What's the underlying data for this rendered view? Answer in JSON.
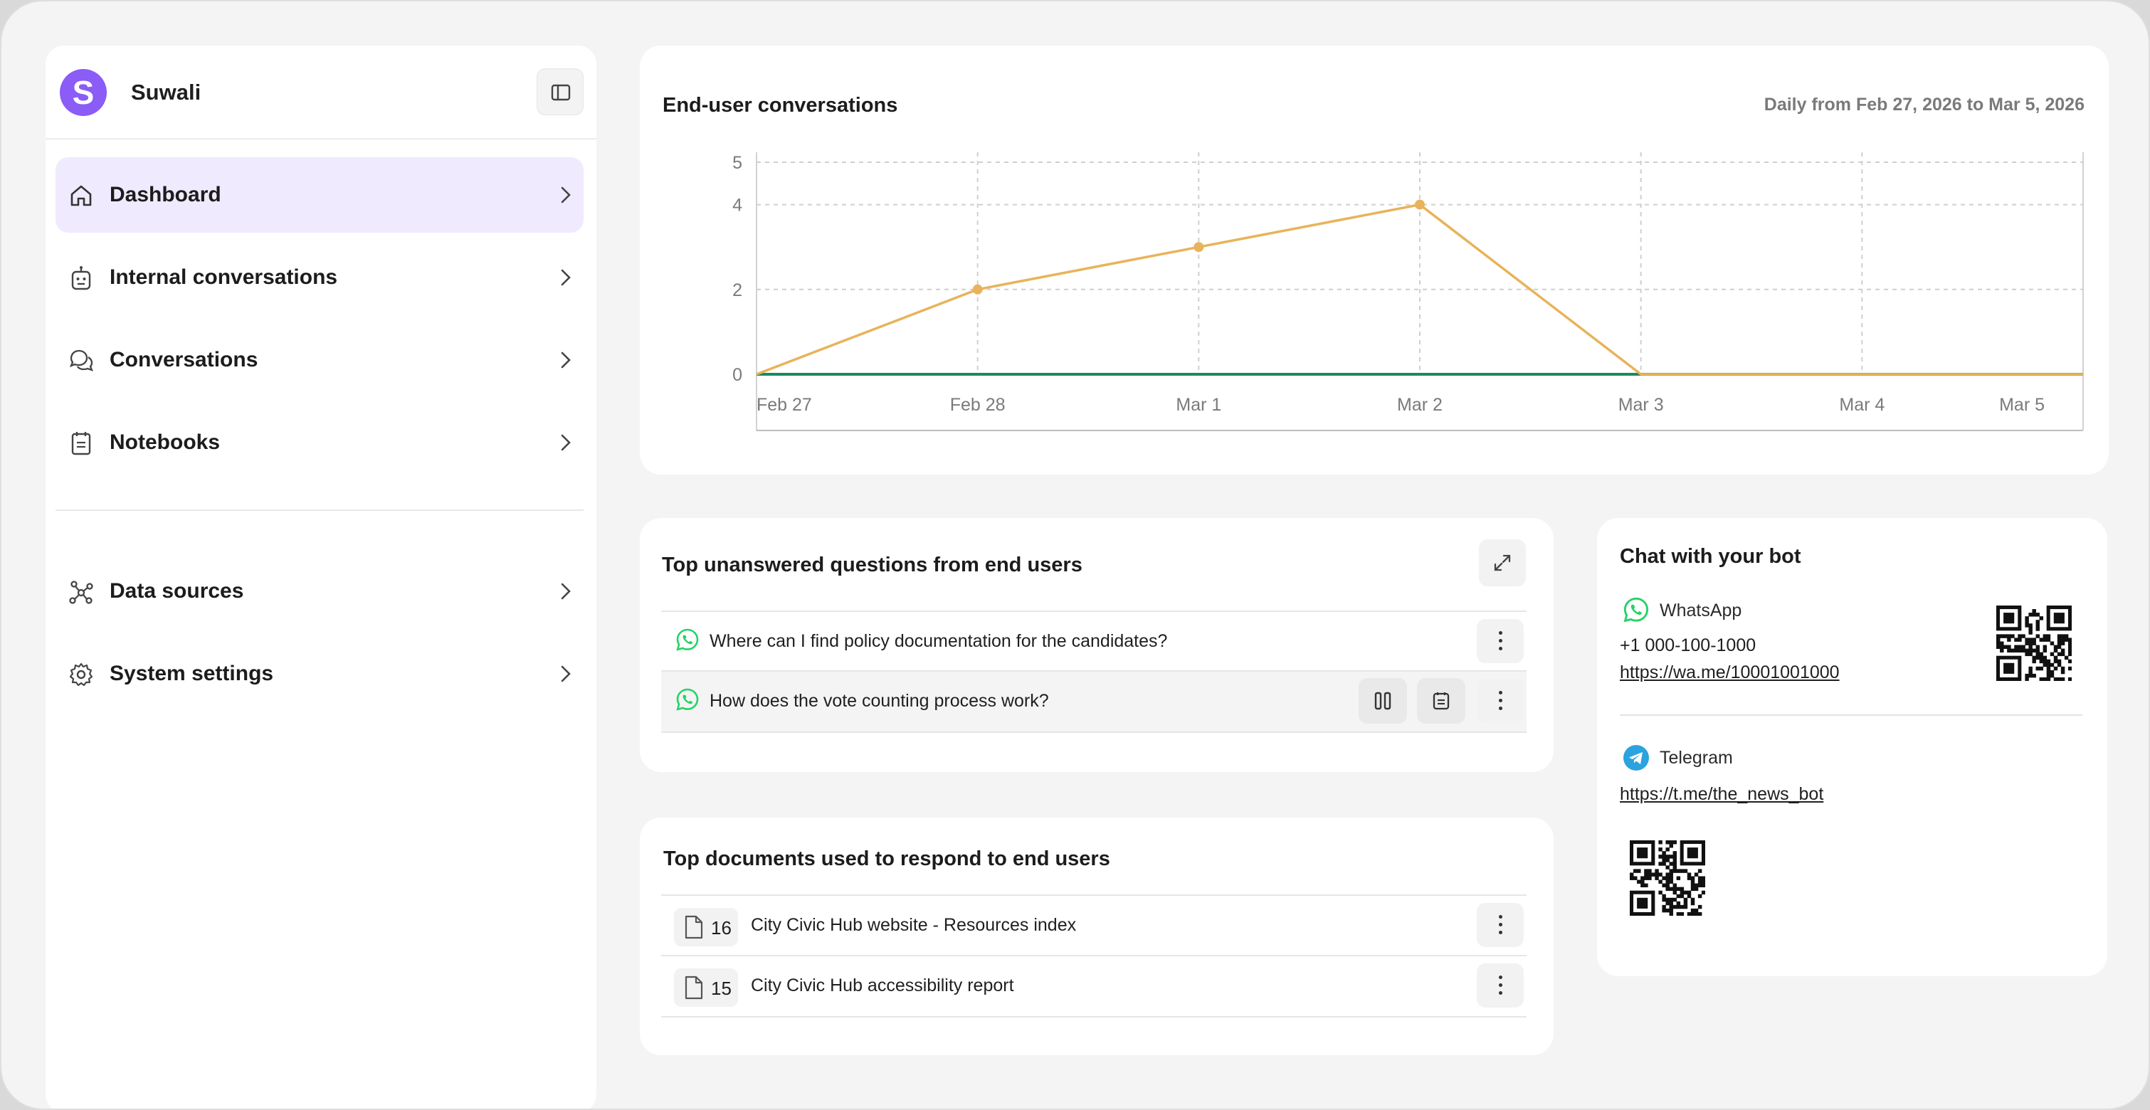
{
  "sidebar": {
    "brand": {
      "initial": "S",
      "name": "Suwali",
      "avatar_color": "#8b5cf6"
    },
    "items": [
      {
        "label": "Dashboard",
        "icon": "home-icon",
        "active": true
      },
      {
        "label": "Internal conversations",
        "icon": "robot-icon"
      },
      {
        "label": "Conversations",
        "icon": "chat-bubbles-icon"
      },
      {
        "label": "Notebooks",
        "icon": "notebook-icon"
      },
      {
        "label": "Data sources",
        "icon": "graph-nodes-icon"
      },
      {
        "label": "System settings",
        "icon": "gear-icon"
      }
    ]
  },
  "chart_card": {
    "title": "End-user conversations",
    "range": "Daily from Feb 27, 2026 to Mar 5, 2026"
  },
  "chart_data": {
    "type": "line",
    "categories": [
      "Feb 27",
      "Feb 28",
      "Mar 1",
      "Mar 2",
      "Mar 3",
      "Mar 4",
      "Mar 5"
    ],
    "series": [
      {
        "color": "#e8b35a",
        "values": [
          0,
          2,
          3,
          4,
          0,
          0,
          0
        ]
      },
      {
        "color": "#1a8a5a",
        "values": [
          0,
          0,
          0,
          0,
          0,
          0,
          0
        ]
      }
    ],
    "y_ticks": [
      0,
      2,
      4,
      5
    ],
    "ylim": [
      0,
      5
    ],
    "grid": true
  },
  "questions_card": {
    "title": "Top unanswered questions from end users",
    "items": [
      {
        "text": "Where can I find policy documentation for the candidates?",
        "channel_icon": "whatsapp-icon"
      },
      {
        "text": "How does the vote counting process work?",
        "channel_icon": "whatsapp-icon"
      }
    ]
  },
  "documents_card": {
    "title": "Top documents used to respond to end users",
    "items": [
      {
        "count": "16",
        "name": "City Civic Hub website - Resources index"
      },
      {
        "count": "15",
        "name": "City Civic Hub accessibility report"
      }
    ]
  },
  "bot_card": {
    "title": "Chat with your bot",
    "whatsapp": {
      "label": "WhatsApp",
      "phone": "+1 000-100-1000",
      "link": "https://wa.me/10001001000",
      "color": "#25d366"
    },
    "telegram": {
      "label": "Telegram",
      "link": "https://t.me/the_news_bot",
      "color": "#2aa3df"
    }
  }
}
